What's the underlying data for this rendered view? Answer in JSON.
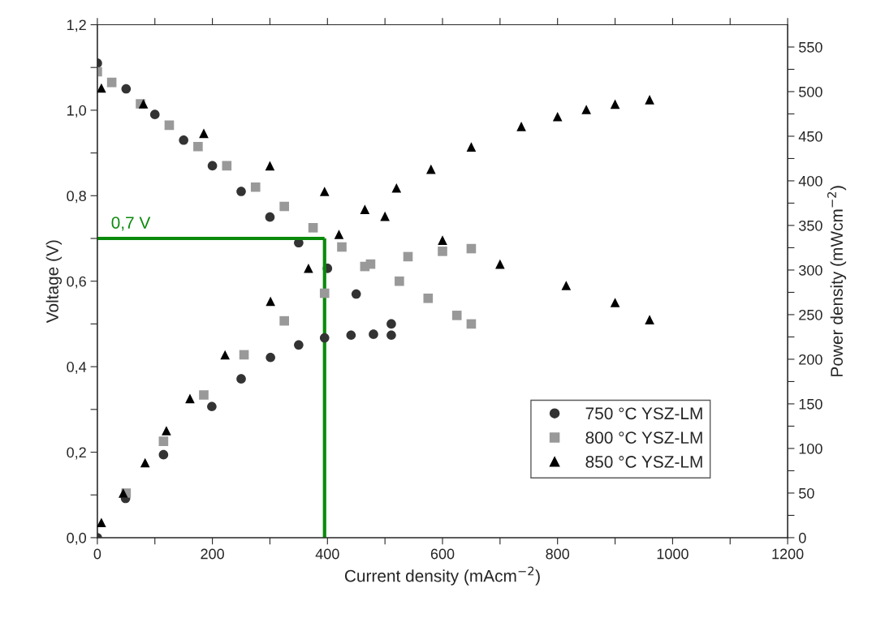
{
  "chart_data": {
    "type": "scatter",
    "xlabel": "Current density (mAcm$^{−2}$)",
    "ylabel": "Voltage (V)",
    "y2label": "Power density (mWcm$^{−2}$)",
    "xlim": [
      0,
      1200
    ],
    "xticks": [
      0,
      {
        "value": 100,
        "label": null
      },
      200,
      {
        "value": 300,
        "label": null
      },
      400,
      {
        "value": 500,
        "label": null
      },
      600,
      {
        "value": 700,
        "label": null
      },
      800,
      {
        "value": 900,
        "label": null
      },
      1000,
      {
        "value": 1100,
        "label": null
      },
      1200
    ],
    "ylim": [
      0,
      1.2
    ],
    "yticks": [
      {
        "value": 0,
        "label": "0,0"
      },
      {
        "value": 0.1,
        "label": null
      },
      {
        "value": 0.2,
        "label": "0,2"
      },
      {
        "value": 0.3,
        "label": null
      },
      {
        "value": 0.4,
        "label": "0,4"
      },
      {
        "value": 0.5,
        "label": null
      },
      {
        "value": 0.6,
        "label": "0,6"
      },
      {
        "value": 0.7,
        "label": null
      },
      {
        "value": 0.8,
        "label": "0,8"
      },
      {
        "value": 0.9,
        "label": null
      },
      {
        "value": 1.0,
        "label": "1,0"
      },
      {
        "value": 1.1,
        "label": null
      },
      {
        "value": 1.2,
        "label": "1,2"
      }
    ],
    "y2lim": [
      0,
      575
    ],
    "y2ticks": [
      0,
      {
        "value": 25,
        "label": null
      },
      50,
      {
        "value": 75,
        "label": null
      },
      100,
      {
        "value": 125,
        "label": null
      },
      150,
      {
        "value": 175,
        "label": null
      },
      200,
      {
        "value": 225,
        "label": null
      },
      250,
      {
        "value": 275,
        "label": null
      },
      300,
      {
        "value": 325,
        "label": null
      },
      350,
      {
        "value": 375,
        "label": null
      },
      400,
      {
        "value": 425,
        "label": null
      },
      450,
      {
        "value": 475,
        "label": null
      },
      500,
      {
        "value": 525,
        "label": null
      },
      550
    ],
    "legend": "lower right",
    "grid": false,
    "ref_lines": [
      {
        "axis": "y",
        "value": 0.7,
        "label": "0,7 V",
        "color": "#0a8a0a"
      },
      {
        "axis": "x",
        "value": 395,
        "color": "#0a8a0a"
      }
    ],
    "series": [
      {
        "name": "750 °C YSZ-LM",
        "marker": "circle",
        "color": "#333333",
        "x": [
          0,
          50,
          100,
          150,
          200,
          250,
          300,
          350,
          400,
          450,
          511
        ],
        "values": [
          1.11,
          1.05,
          0.99,
          0.93,
          0.87,
          0.81,
          0.75,
          0.69,
          0.63,
          0.57,
          0.5
        ]
      },
      {
        "name": "800 °C YSZ-LM",
        "marker": "square",
        "color": "#999999",
        "x": [
          0,
          25,
          75,
          125,
          175,
          225,
          275,
          325,
          375,
          425,
          475,
          525,
          575,
          625,
          650
        ],
        "values": [
          1.09,
          1.065,
          1.015,
          0.965,
          0.915,
          0.87,
          0.82,
          0.775,
          0.725,
          0.68,
          0.64,
          0.6,
          0.56,
          0.52,
          0.5
        ]
      },
      {
        "name": "850 °C YSZ-LM",
        "marker": "triangle",
        "color": "#000000",
        "x": [
          7,
          80,
          185,
          300,
          395,
          500,
          600,
          700,
          815,
          900,
          960
        ],
        "values": [
          1.052,
          1.015,
          0.946,
          0.87,
          0.81,
          0.752,
          0.696,
          0.64,
          0.59,
          0.55,
          0.51
        ]
      },
      {
        "axis": "y2",
        "marker": "circle",
        "color": "#333333",
        "x": [
          0,
          49,
          115,
          199,
          250,
          301,
          350,
          395,
          441,
          480,
          511
        ],
        "values": [
          0,
          44,
          93,
          147,
          178,
          202,
          216,
          224,
          227,
          228,
          227
        ]
      },
      {
        "axis": "y2",
        "marker": "square",
        "color": "#999999",
        "x": [
          50,
          115,
          185,
          255,
          325,
          395,
          465,
          540,
          600,
          650
        ],
        "values": [
          50,
          108,
          160,
          205,
          243,
          274,
          304,
          315,
          321,
          324
        ]
      },
      {
        "axis": "y2",
        "marker": "triangle",
        "color": "#000000",
        "x": [
          7,
          45,
          83,
          120,
          161,
          222,
          301,
          367,
          420,
          465,
          520,
          580,
          650,
          737,
          800,
          850,
          900,
          960
        ],
        "values": [
          17,
          50,
          84,
          120,
          156,
          205,
          265,
          302,
          340,
          368,
          392,
          413,
          438,
          461,
          472,
          480,
          486,
          491
        ]
      }
    ]
  }
}
